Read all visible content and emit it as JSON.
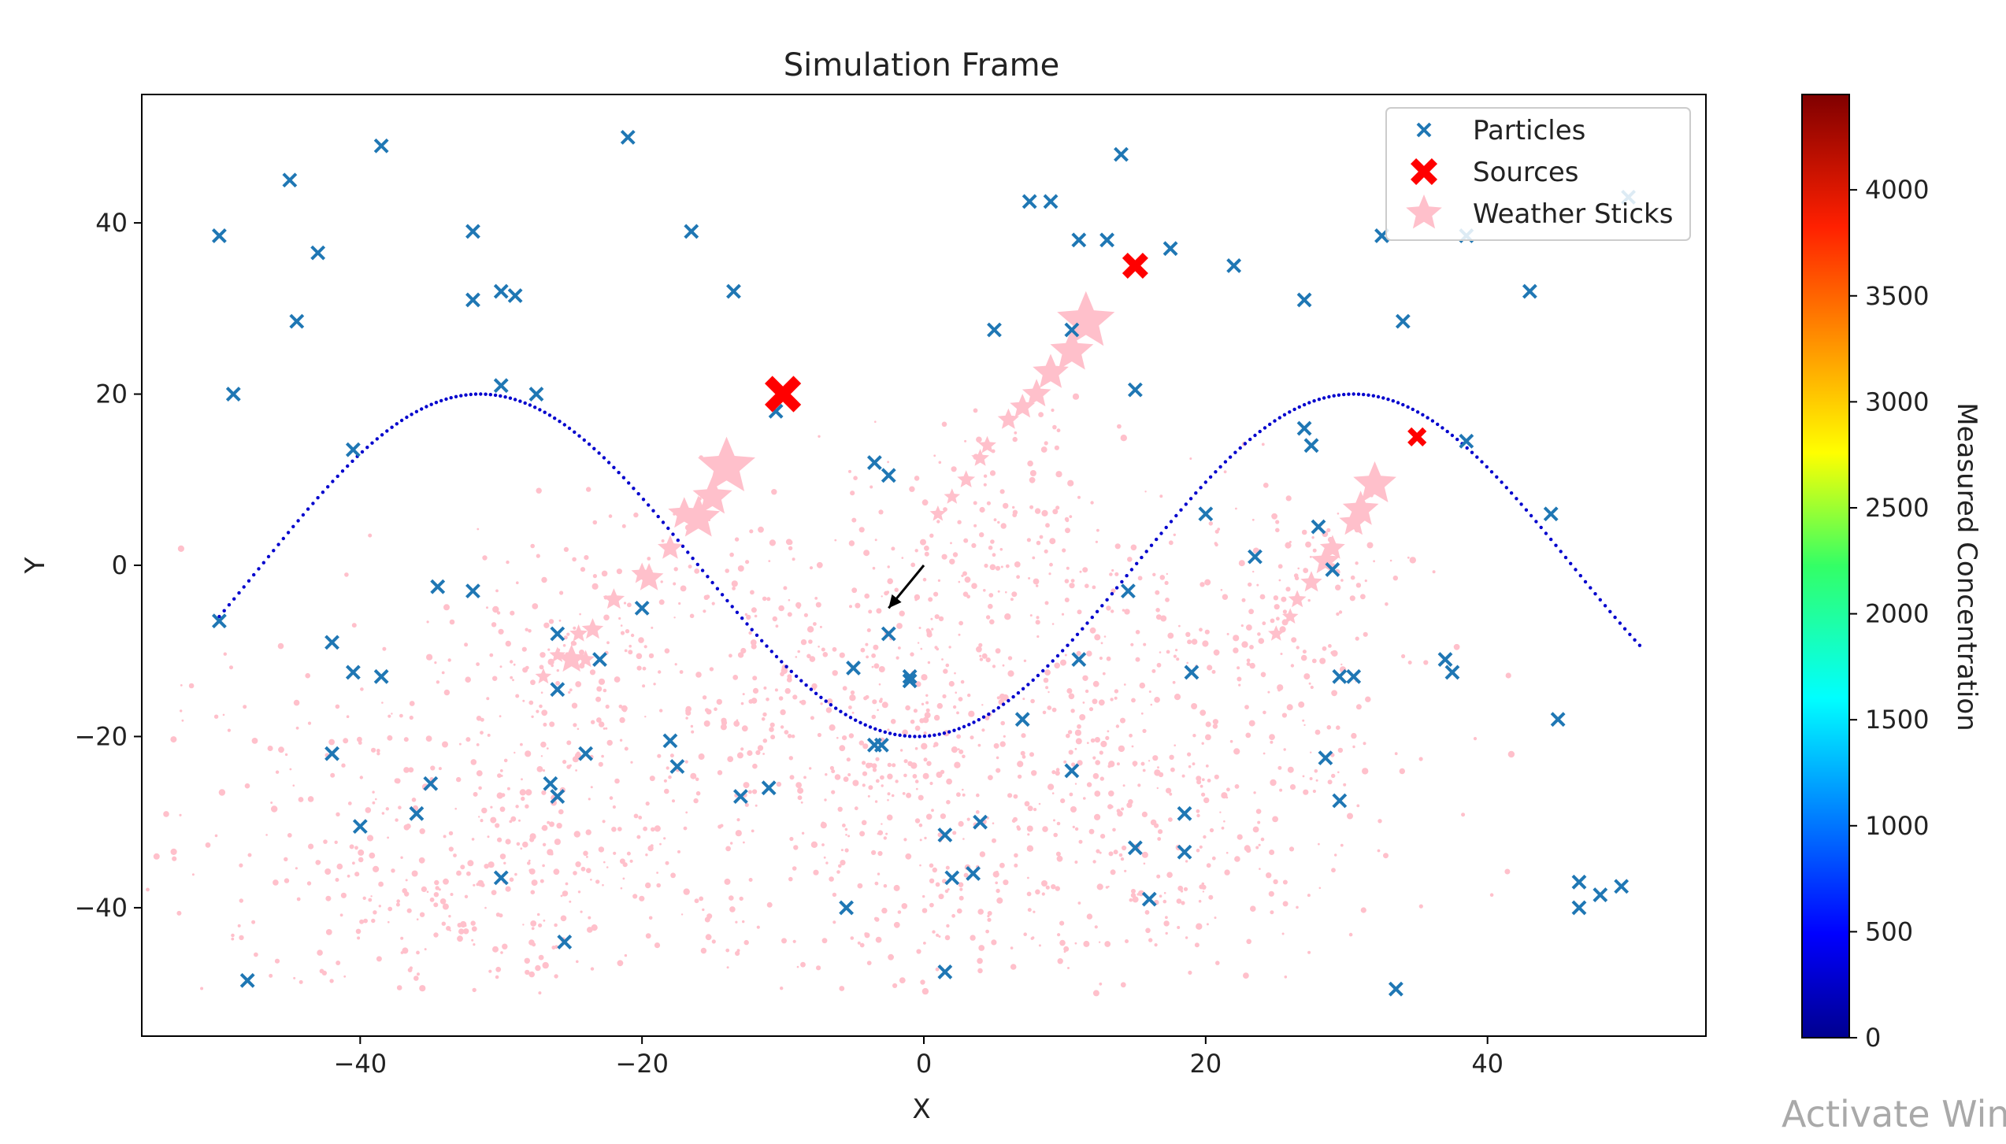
{
  "chart_data": {
    "type": "scatter",
    "title": "Simulation Frame",
    "xlabel": "X",
    "ylabel": "Y",
    "xlim": [
      -55.5,
      55.5
    ],
    "ylim": [
      -55,
      55
    ],
    "xticks": [
      -40,
      -20,
      0,
      20,
      40
    ],
    "yticks": [
      -40,
      -20,
      0,
      20,
      40
    ],
    "grid": false,
    "legend_position": "top-right",
    "legend": [
      "Particles",
      "Sources",
      "Weather Sticks"
    ],
    "colors": {
      "particles": "#1f77b4",
      "sources": "#ff0000",
      "weather_sticks": "#ffc0cb",
      "arrow": "#000000"
    },
    "series": [
      {
        "name": "Particles",
        "marker": "x",
        "points": [
          [
            -50,
            38.5
          ],
          [
            -45,
            45
          ],
          [
            -43,
            36.5
          ],
          [
            -44.5,
            28.5
          ],
          [
            -38.5,
            49
          ],
          [
            -32,
            39
          ],
          [
            -32,
            31
          ],
          [
            -30,
            32
          ],
          [
            -29,
            31.5
          ],
          [
            -30,
            21
          ],
          [
            -27.5,
            20
          ],
          [
            -21,
            50
          ],
          [
            -16.5,
            39
          ],
          [
            -13.5,
            32
          ],
          [
            -49,
            20
          ],
          [
            -40.5,
            13.5
          ],
          [
            -50,
            -6.5
          ],
          [
            -42,
            -9
          ],
          [
            -40.5,
            -12.5
          ],
          [
            -38.5,
            -13
          ],
          [
            -42,
            -22
          ],
          [
            -34.5,
            -2.5
          ],
          [
            -32,
            -3
          ],
          [
            -35,
            -25.5
          ],
          [
            -36,
            -29
          ],
          [
            -40,
            -30.5
          ],
          [
            -30,
            -36.5
          ],
          [
            -26,
            -8
          ],
          [
            -26,
            -14.5
          ],
          [
            -26.5,
            -25.5
          ],
          [
            -26,
            -27
          ],
          [
            -24,
            -22
          ],
          [
            -25.5,
            -44
          ],
          [
            -48,
            -48.5
          ],
          [
            -20,
            -5
          ],
          [
            -23,
            -11
          ],
          [
            -18,
            -20.5
          ],
          [
            -17.5,
            -23.5
          ],
          [
            -13,
            -27
          ],
          [
            -11,
            -26
          ],
          [
            -10.5,
            18
          ],
          [
            -3.5,
            12
          ],
          [
            -2.5,
            10.5
          ],
          [
            -2.5,
            -8
          ],
          [
            -1,
            -13
          ],
          [
            -1,
            -13.5
          ],
          [
            -5,
            -12
          ],
          [
            -3.5,
            -21
          ],
          [
            -3,
            -21
          ],
          [
            -5.5,
            -40
          ],
          [
            1.5,
            -31.5
          ],
          [
            2,
            -36.5
          ],
          [
            3.5,
            -36
          ],
          [
            4,
            -30
          ],
          [
            1.5,
            -47.5
          ],
          [
            7,
            -18
          ],
          [
            10.5,
            -24
          ],
          [
            11,
            -11
          ],
          [
            14.5,
            -3
          ],
          [
            15,
            -33
          ],
          [
            16,
            -39
          ],
          [
            18.5,
            -29
          ],
          [
            18.5,
            -33.5
          ],
          [
            19,
            -12.5
          ],
          [
            20,
            6
          ],
          [
            23.5,
            1
          ],
          [
            7.5,
            42.5
          ],
          [
            9,
            42.5
          ],
          [
            11,
            38
          ],
          [
            13,
            38
          ],
          [
            14,
            48
          ],
          [
            17.5,
            37
          ],
          [
            22,
            35
          ],
          [
            27,
            31
          ],
          [
            27,
            16
          ],
          [
            27.5,
            14
          ],
          [
            28,
            4.5
          ],
          [
            29,
            -0.5
          ],
          [
            29.5,
            -13
          ],
          [
            30.5,
            -13
          ],
          [
            28.5,
            -22.5
          ],
          [
            29.5,
            -27.5
          ],
          [
            32.5,
            38.5
          ],
          [
            34,
            28.5
          ],
          [
            38.5,
            38.5
          ],
          [
            38.5,
            14.5
          ],
          [
            43,
            32
          ],
          [
            44.5,
            6
          ],
          [
            37,
            -11
          ],
          [
            37.5,
            -12.5
          ],
          [
            45,
            -18
          ],
          [
            46.5,
            -37
          ],
          [
            46.5,
            -40
          ],
          [
            48,
            -38.5
          ],
          [
            49.5,
            -37.5
          ],
          [
            50,
            43
          ],
          [
            33.5,
            -49.5
          ],
          [
            15,
            20.5
          ],
          [
            5,
            27.5
          ],
          [
            10.5,
            27.5
          ]
        ]
      },
      {
        "name": "Sources",
        "marker": "X",
        "points": [
          [
            -10,
            20,
            4.2
          ],
          [
            15,
            35,
            3.0
          ],
          [
            35,
            15,
            2.2
          ]
        ]
      },
      {
        "name": "Weather Sticks",
        "marker": "star",
        "points": [
          [
            -14,
            11.5,
            3.2
          ],
          [
            -15,
            8,
            2.2
          ],
          [
            -16,
            5.5,
            2.4
          ],
          [
            -17,
            6,
            1.8
          ],
          [
            -18,
            2,
            1.4
          ],
          [
            -19.5,
            -1.5,
            1.6
          ],
          [
            -20,
            -1,
            1.2
          ],
          [
            -22,
            -4,
            1.2
          ],
          [
            -23.5,
            -7.5,
            1.2
          ],
          [
            -24.5,
            -8,
            1.0
          ],
          [
            -25,
            -11,
            1.6
          ],
          [
            -24,
            -11,
            1.0
          ],
          [
            -26,
            -10.5,
            0.9
          ],
          [
            -27,
            -13,
            0.9
          ],
          [
            11.5,
            28.5,
            3.2
          ],
          [
            10.5,
            25,
            2.4
          ],
          [
            9,
            22.5,
            2
          ],
          [
            8,
            20,
            1.6
          ],
          [
            7,
            18.5,
            1.4
          ],
          [
            6,
            17,
            1.2
          ],
          [
            4.5,
            14,
            1.0
          ],
          [
            4,
            12.5,
            1.0
          ],
          [
            3,
            10,
            1.0
          ],
          [
            2,
            8,
            0.9
          ],
          [
            1,
            6,
            0.9
          ],
          [
            32,
            9.5,
            2.4
          ],
          [
            31,
            6.5,
            2
          ],
          [
            30.5,
            5,
            1.6
          ],
          [
            29,
            2,
            1.4
          ],
          [
            28.5,
            0.5,
            1.6
          ],
          [
            27.5,
            -2,
            1.2
          ],
          [
            26.5,
            -4,
            1.0
          ],
          [
            26,
            -6,
            0.9
          ],
          [
            25,
            -8,
            0.9
          ]
        ]
      }
    ],
    "curve": {
      "name": "Trajectory",
      "function": "y = -20*sin(2*pi*(x+16)/62)",
      "x_range": [
        -50,
        51
      ],
      "color": "#0000cd"
    },
    "arrow": {
      "from": [
        0,
        0
      ],
      "to": [
        -2.5,
        -5
      ]
    },
    "colorbar": {
      "label": "Measured Concentration",
      "min": 0,
      "max": 4450,
      "ticks": [
        0,
        500,
        1000,
        1500,
        2000,
        2500,
        3000,
        3500,
        4000
      ],
      "colormap": "jet"
    }
  },
  "overlay": {
    "watermark": "Activate Wind"
  }
}
